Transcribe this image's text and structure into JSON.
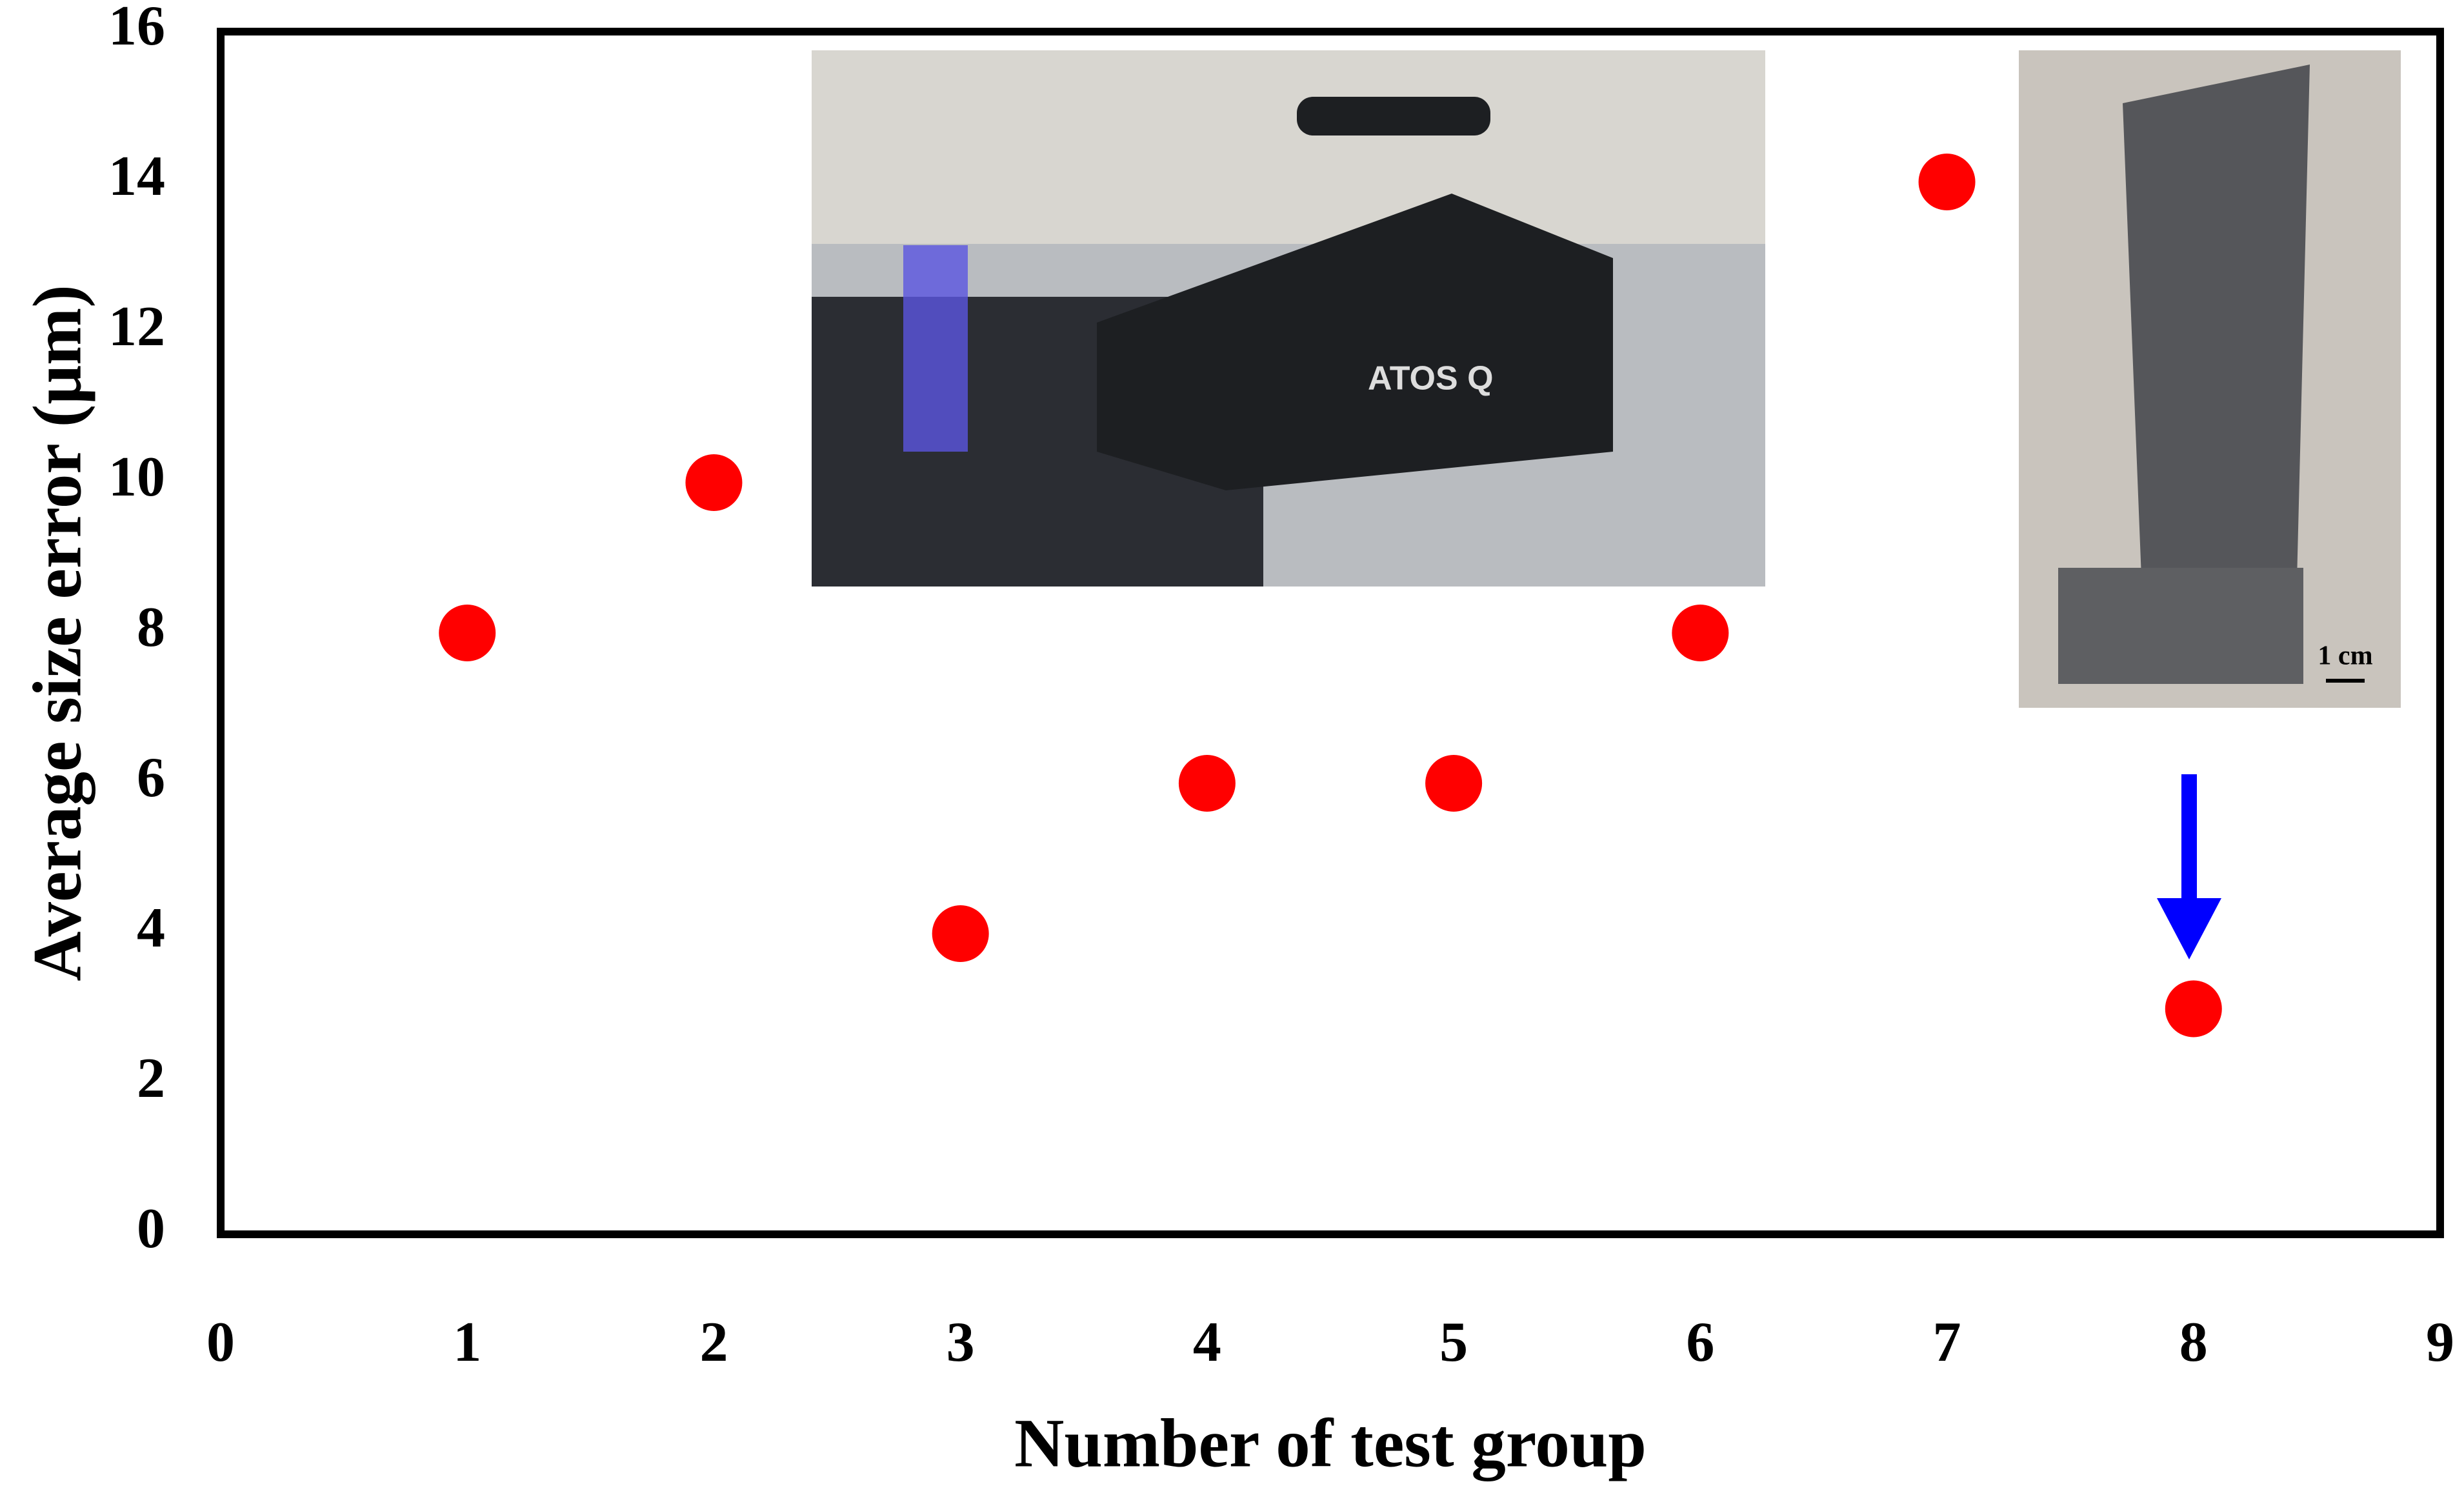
{
  "chart_data": {
    "type": "scatter",
    "x_label": "Number of test group",
    "y_label": "Average size error (μm)",
    "series": [
      {
        "color": "#ff0000",
        "x": [
          1,
          2,
          3,
          4,
          5,
          6,
          7,
          8
        ],
        "values": [
          8,
          10,
          4,
          6,
          6,
          8,
          14,
          3
        ]
      }
    ],
    "xlim": [
      0,
      9
    ],
    "xticks": [
      0,
      1,
      2,
      3,
      4,
      5,
      6,
      7,
      8,
      9
    ],
    "ylim": [
      0,
      16
    ],
    "yticks": [
      0,
      2,
      4,
      6,
      8,
      10,
      12,
      14,
      16
    ],
    "grid": false,
    "annotations": [
      "ATOS Q",
      "1 cm"
    ]
  }
}
